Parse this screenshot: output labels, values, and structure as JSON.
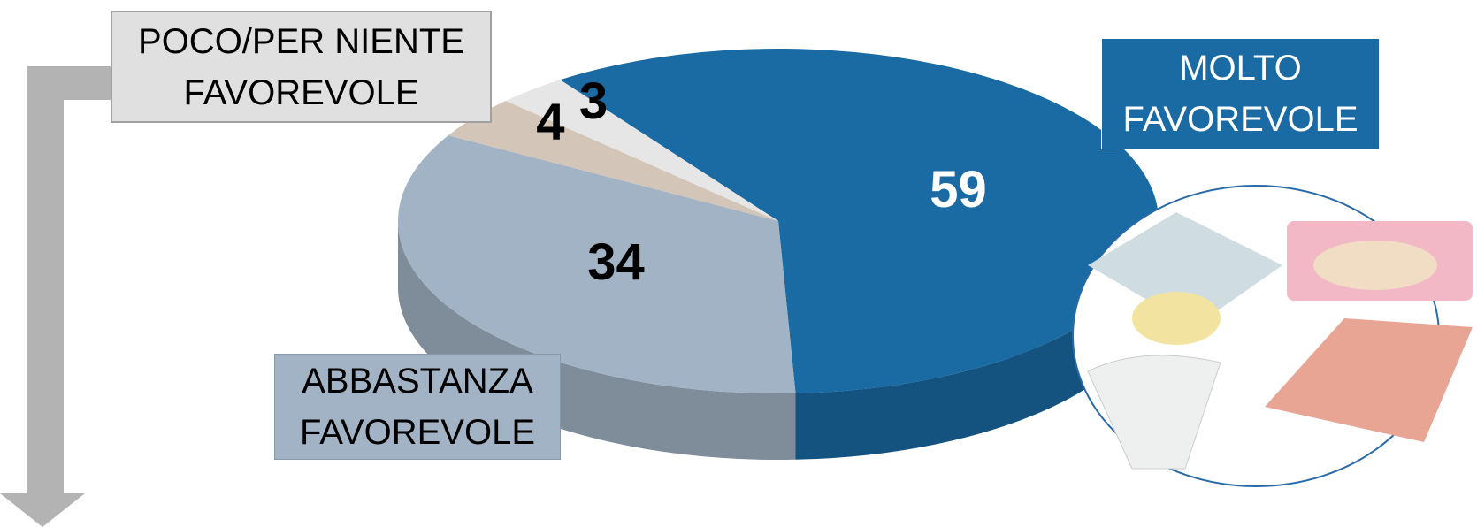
{
  "chart_data": {
    "type": "pie",
    "categories": [
      "MOLTO FAVOREVOLE",
      "ABBASTANZA FAVOREVOLE",
      null,
      null
    ],
    "values": [
      59,
      34,
      4,
      3
    ],
    "colors": [
      "#1a6aa3",
      "#a3b3c6",
      "#d3c5b8",
      "#e6e6e6"
    ],
    "label_colors": [
      "#ffffff",
      "#000000",
      "#000000",
      "#000000"
    ],
    "annotations": [
      "POCO/PER NIENTE FAVOREVOLE"
    ]
  }
}
